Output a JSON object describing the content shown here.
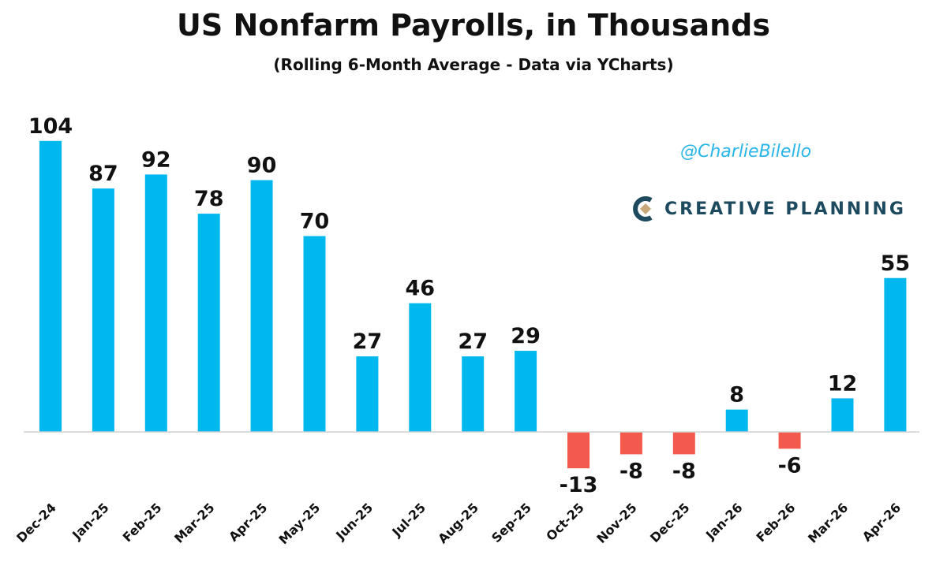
{
  "header": {
    "title": "US Nonfarm Payrolls, in Thousands",
    "subtitle": "(Rolling 6-Month Average - Data via YCharts)"
  },
  "branding": {
    "handle": "@CharlieBilello",
    "logo_text": "CREATIVE PLANNING",
    "logo_icon": "creative-planning-logo-icon"
  },
  "colors": {
    "positive": "#00b8ee",
    "negative": "#f4594e",
    "text": "#111111"
  },
  "chart_data": {
    "type": "bar",
    "title": "US Nonfarm Payrolls, in Thousands",
    "subtitle": "(Rolling 6-Month Average - Data via YCharts)",
    "xlabel": "",
    "ylabel": "",
    "categories": [
      "Dec-24",
      "Jan-25",
      "Feb-25",
      "Mar-25",
      "Apr-25",
      "May-25",
      "Jun-25",
      "Jul-25",
      "Aug-25",
      "Sep-25",
      "Oct-25",
      "Nov-25",
      "Dec-25",
      "Jan-26",
      "Feb-26",
      "Mar-26",
      "Apr-26"
    ],
    "values": [
      104,
      87,
      92,
      78,
      90,
      70,
      27,
      46,
      27,
      29,
      -13,
      -8,
      -8,
      8,
      -6,
      12,
      55
    ],
    "data_labels": [
      "104",
      "87",
      "92",
      "78",
      "90",
      "70",
      "27",
      "46",
      "27",
      "29",
      "-13",
      "-8",
      "-8",
      "8",
      "-6",
      "12",
      "55"
    ],
    "ylim": [
      -20,
      110
    ],
    "grid": false,
    "legend": "none"
  }
}
